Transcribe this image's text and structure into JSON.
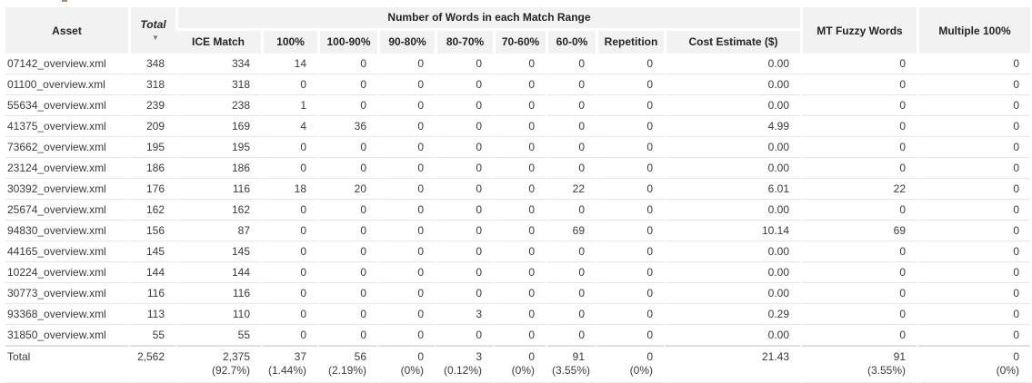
{
  "colors": {
    "header_bg": "#f2f2f2",
    "header_text": "#252423",
    "cell_text": "#3b3a39",
    "row_line": "#e6e6e6",
    "total_line": "#d8d8d8"
  },
  "icons": {
    "sort_descending": "▼"
  },
  "table": {
    "headers": {
      "asset": "Asset",
      "total": "Total",
      "group": "Number of Words in each Match Range",
      "sub": [
        "ICE Match",
        "100%",
        "100-90%",
        "90-80%",
        "80-70%",
        "70-60%",
        "60-0%",
        "Repetition",
        "Cost Estimate ($)"
      ],
      "mt_fuzzy": "MT Fuzzy Words",
      "multiple_100": "Multiple 100%"
    },
    "rows": [
      [
        "07142_overview.xml",
        "348",
        "334",
        "14",
        "0",
        "0",
        "0",
        "0",
        "0",
        "0",
        "0.00",
        "0",
        "0"
      ],
      [
        "01100_overview.xml",
        "318",
        "318",
        "0",
        "0",
        "0",
        "0",
        "0",
        "0",
        "0",
        "0.00",
        "0",
        "0"
      ],
      [
        "55634_overview.xml",
        "239",
        "238",
        "1",
        "0",
        "0",
        "0",
        "0",
        "0",
        "0",
        "0.00",
        "0",
        "0"
      ],
      [
        "41375_overview.xml",
        "209",
        "169",
        "4",
        "36",
        "0",
        "0",
        "0",
        "0",
        "0",
        "4.99",
        "0",
        "0"
      ],
      [
        "73662_overview.xml",
        "195",
        "195",
        "0",
        "0",
        "0",
        "0",
        "0",
        "0",
        "0",
        "0.00",
        "0",
        "0"
      ],
      [
        "23124_overview.xml",
        "186",
        "186",
        "0",
        "0",
        "0",
        "0",
        "0",
        "0",
        "0",
        "0.00",
        "0",
        "0"
      ],
      [
        "30392_overview.xml",
        "176",
        "116",
        "18",
        "20",
        "0",
        "0",
        "0",
        "22",
        "0",
        "6.01",
        "22",
        "0"
      ],
      [
        "25674_overview.xml",
        "162",
        "162",
        "0",
        "0",
        "0",
        "0",
        "0",
        "0",
        "0",
        "0.00",
        "0",
        "0"
      ],
      [
        "94830_overview.xml",
        "156",
        "87",
        "0",
        "0",
        "0",
        "0",
        "0",
        "69",
        "0",
        "10.14",
        "69",
        "0"
      ],
      [
        "44165_overview.xml",
        "145",
        "145",
        "0",
        "0",
        "0",
        "0",
        "0",
        "0",
        "0",
        "0.00",
        "0",
        "0"
      ],
      [
        "10224_overview.xml",
        "144",
        "144",
        "0",
        "0",
        "0",
        "0",
        "0",
        "0",
        "0",
        "0.00",
        "0",
        "0"
      ],
      [
        "30773_overview.xml",
        "116",
        "116",
        "0",
        "0",
        "0",
        "0",
        "0",
        "0",
        "0",
        "0.00",
        "0",
        "0"
      ],
      [
        "93368_overview.xml",
        "113",
        "110",
        "0",
        "0",
        "0",
        "3",
        "0",
        "0",
        "0",
        "0.29",
        "0",
        "0"
      ],
      [
        "31850_overview.xml",
        "55",
        "55",
        "0",
        "0",
        "0",
        "0",
        "0",
        "0",
        "0",
        "0.00",
        "0",
        "0"
      ]
    ],
    "total": {
      "label": "Total",
      "cells": [
        {
          "v": "2,562",
          "p": ""
        },
        {
          "v": "2,375",
          "p": "(92.7%)"
        },
        {
          "v": "37",
          "p": "(1.44%)"
        },
        {
          "v": "56",
          "p": "(2.19%)"
        },
        {
          "v": "0",
          "p": "(0%)"
        },
        {
          "v": "3",
          "p": "(0.12%)"
        },
        {
          "v": "0",
          "p": "(0%)"
        },
        {
          "v": "91",
          "p": "(3.55%)"
        },
        {
          "v": "0",
          "p": "(0%)"
        },
        {
          "v": "21.43",
          "p": ""
        },
        {
          "v": "91",
          "p": "(3.55%)"
        },
        {
          "v": "0",
          "p": "(0%)"
        }
      ]
    }
  }
}
